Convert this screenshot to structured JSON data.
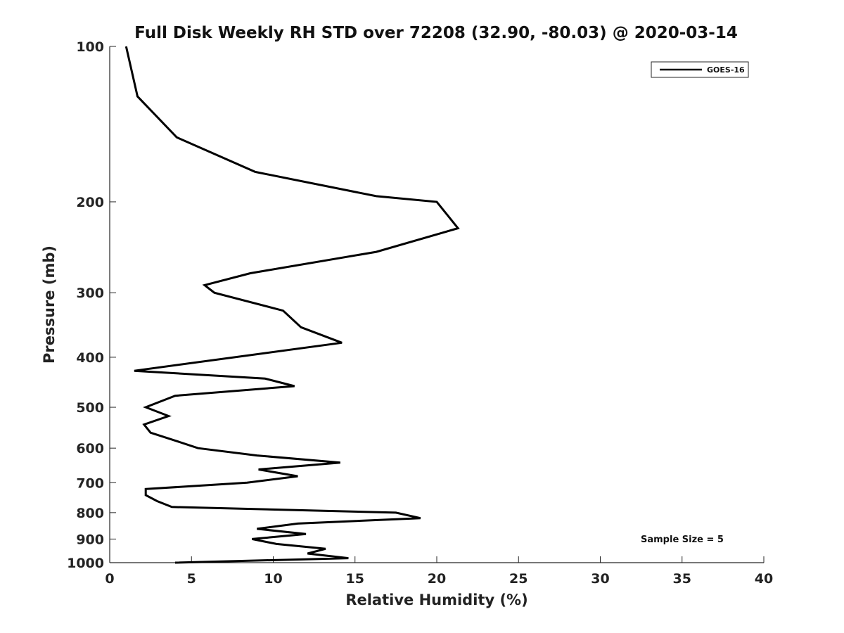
{
  "chart_data": {
    "type": "line",
    "title": "Full Disk Weekly RH STD over 72208 (32.90, -80.03) @ 2020-03-14",
    "xlabel": "Relative Humidity (%)",
    "ylabel": "Pressure (mb)",
    "xlim": [
      0,
      40
    ],
    "ylim": [
      100,
      1000
    ],
    "y_scale": "log",
    "y_inverted": true,
    "x_ticks": [
      0,
      5,
      10,
      15,
      20,
      25,
      30,
      35,
      40
    ],
    "y_ticks": [
      100,
      200,
      300,
      400,
      500,
      600,
      700,
      800,
      900,
      1000
    ],
    "grid": false,
    "legend_position": "top-right",
    "series": [
      {
        "name": "GOES-16",
        "color": "#000000",
        "points": [
          [
            1.0,
            100
          ],
          [
            1.7,
            125
          ],
          [
            4.1,
            150
          ],
          [
            8.9,
            175
          ],
          [
            16.3,
            195
          ],
          [
            20.0,
            200
          ],
          [
            21.3,
            225
          ],
          [
            16.3,
            250
          ],
          [
            8.6,
            275
          ],
          [
            5.8,
            290
          ],
          [
            6.4,
            300
          ],
          [
            10.6,
            325
          ],
          [
            11.7,
            350
          ],
          [
            14.2,
            375
          ],
          [
            1.5,
            425
          ],
          [
            9.5,
            440
          ],
          [
            11.3,
            455
          ],
          [
            4.0,
            475
          ],
          [
            2.2,
            500
          ],
          [
            3.6,
            520
          ],
          [
            2.1,
            540
          ],
          [
            2.5,
            560
          ],
          [
            4.0,
            580
          ],
          [
            5.4,
            600
          ],
          [
            9.0,
            620
          ],
          [
            14.1,
            640
          ],
          [
            9.1,
            660
          ],
          [
            11.5,
            680
          ],
          [
            8.4,
            700
          ],
          [
            2.2,
            720
          ],
          [
            2.2,
            740
          ],
          [
            2.9,
            760
          ],
          [
            3.8,
            780
          ],
          [
            17.5,
            800
          ],
          [
            19.0,
            820
          ],
          [
            11.5,
            840
          ],
          [
            9.0,
            860
          ],
          [
            12.0,
            880
          ],
          [
            8.7,
            900
          ],
          [
            10.2,
            920
          ],
          [
            13.2,
            940
          ],
          [
            12.1,
            960
          ],
          [
            14.6,
            980
          ],
          [
            4.0,
            1000
          ]
        ]
      }
    ],
    "annotations": [
      "Sample Size = 5"
    ]
  }
}
